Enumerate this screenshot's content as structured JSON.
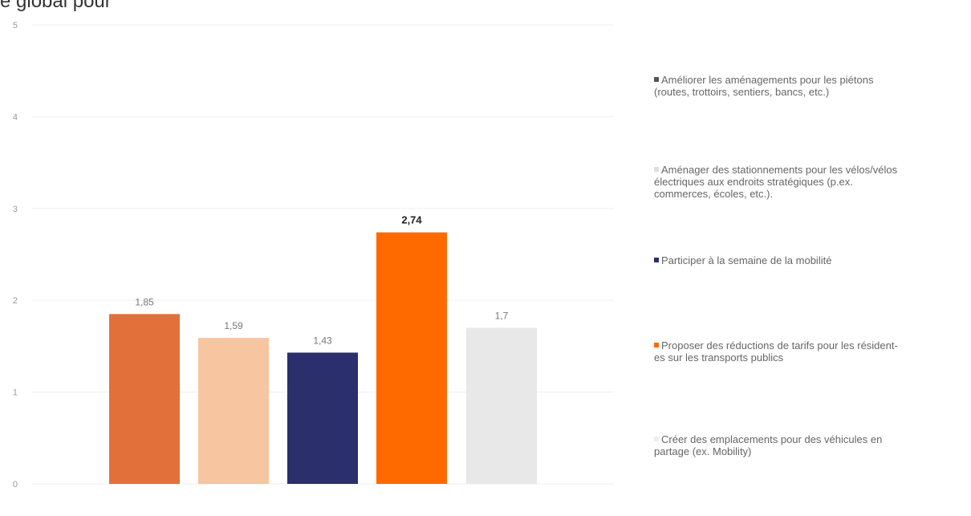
{
  "header_fragment": "e global pour",
  "chart_data": {
    "type": "bar",
    "ylim": [
      0,
      5
    ],
    "yticks": [
      "0",
      "1",
      "2",
      "3",
      "4",
      "5"
    ],
    "grid": true,
    "legend_placement": "right",
    "categories": [
      "Améliorer les aménagements pour les piétons (routes, trottoirs, sentiers, bancs, etc.)",
      "Aménager des stationnements pour les vélos/vélos électriques aux endroits stratégiques (p.ex. commerces, écoles, etc.).",
      "Participer à la semaine de la mobilité",
      "Proposer des réductions de tarifs pour les résident-es sur les transports publics",
      "Créer des emplacements pour des véhicules en partage (ex. Mobility)"
    ],
    "values": [
      1.85,
      1.59,
      1.43,
      2.74,
      1.7
    ],
    "data_labels": [
      "1,85",
      "1,59",
      "1,43",
      "2,74",
      "1,7"
    ],
    "colors": [
      "#E2703A",
      "#F7C59F",
      "#2B2F6B",
      "#FF6A00",
      "#E8E8E8"
    ],
    "highlight_index": 3
  },
  "legend": {
    "items": [
      {
        "lines": [
          "Améliorer les aménagements pour les piétons",
          "(routes, trottoirs, sentiers, bancs, etc.)"
        ],
        "color": "#555555"
      },
      {
        "lines": [
          "Aménager des stationnements pour les vélos/vélos",
          "électriques aux endroits stratégiques (p.ex.",
          "commerces, écoles, etc.)."
        ],
        "color": "#E0E0E0"
      },
      {
        "lines": [
          "Participer à la semaine de la mobilité"
        ],
        "color": "#2B2F6B"
      },
      {
        "lines": [
          "Proposer des réductions de tarifs pour les résident-",
          "es sur les transports publics"
        ],
        "color": "#FF6A00"
      },
      {
        "lines": [
          "Créer des emplacements pour des véhicules en",
          "partage (ex. Mobility)"
        ],
        "color": "#EEEEEE"
      }
    ]
  }
}
